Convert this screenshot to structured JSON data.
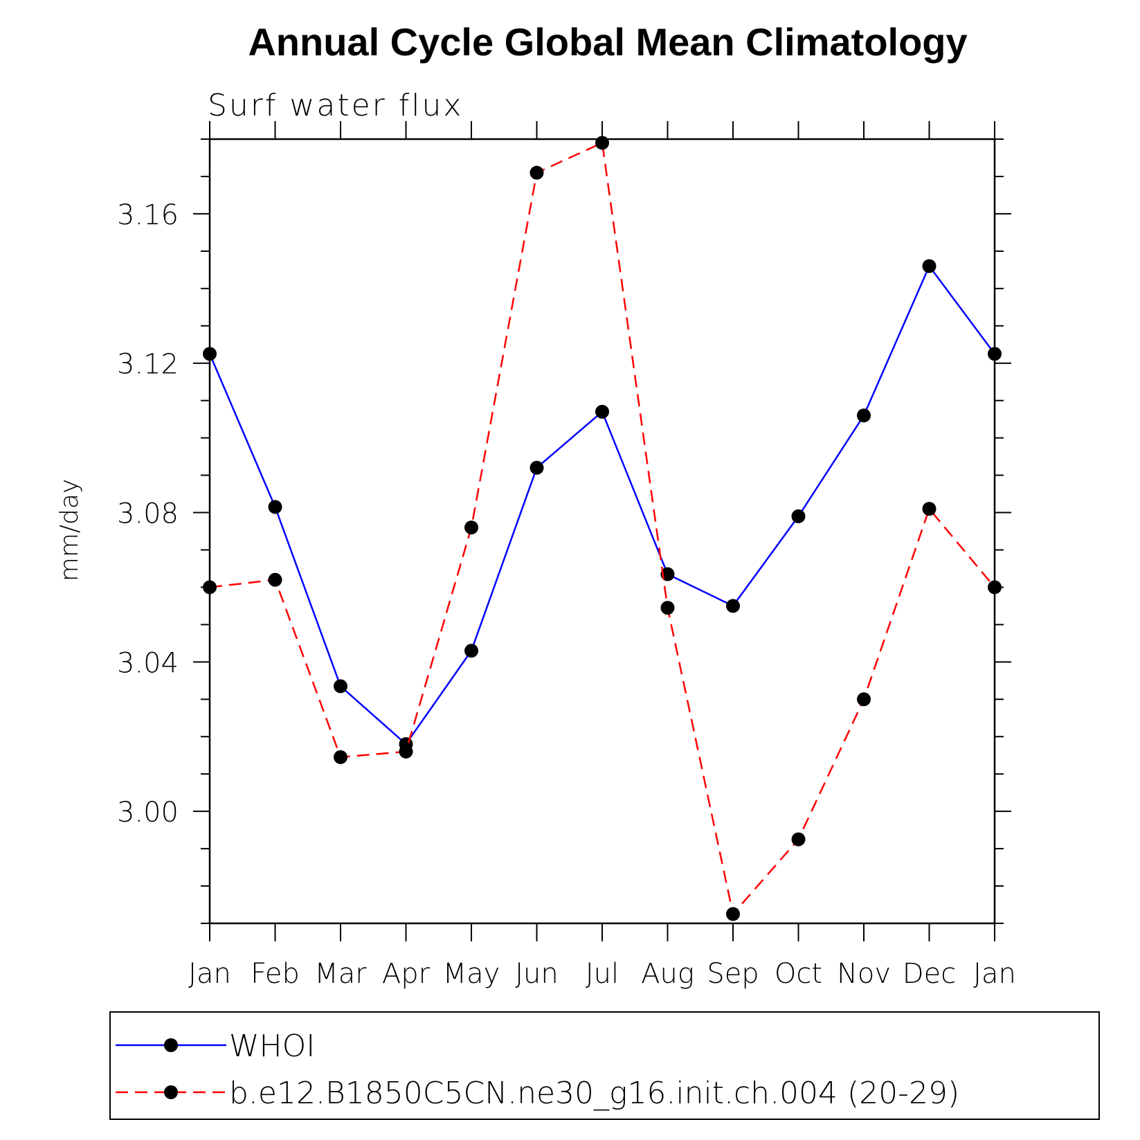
{
  "chart_data": {
    "type": "line",
    "title": "Annual Cycle Global Mean Climatology",
    "subtitle": "Surf water flux",
    "xlabel": "",
    "ylabel": "mm/day",
    "categories": [
      "Jan",
      "Feb",
      "Mar",
      "Apr",
      "May",
      "Jun",
      "Jul",
      "Aug",
      "Sep",
      "Oct",
      "Nov",
      "Dec",
      "Jan"
    ],
    "yticks": [
      "3.00",
      "3.04",
      "3.08",
      "3.12",
      "3.16"
    ],
    "ylim": [
      2.97,
      3.18
    ],
    "grid": false,
    "legend_position": "bottom",
    "series": [
      {
        "name": "WHOI",
        "color": "#0000ff",
        "style": "solid",
        "marker": "filled-circle",
        "values": [
          3.1225,
          3.0815,
          3.0335,
          3.018,
          3.043,
          3.092,
          3.107,
          3.0635,
          3.055,
          3.079,
          3.106,
          3.146,
          3.1225
        ]
      },
      {
        "name": "b.e12.B1850C5CN.ne30_g16.init.ch.004 (20-29)",
        "color": "#ff0000",
        "style": "dashed",
        "marker": "filled-circle",
        "values": [
          3.06,
          3.062,
          3.0145,
          3.016,
          3.076,
          3.171,
          3.179,
          3.0545,
          2.9725,
          2.9925,
          3.03,
          3.081,
          3.06
        ]
      }
    ]
  }
}
